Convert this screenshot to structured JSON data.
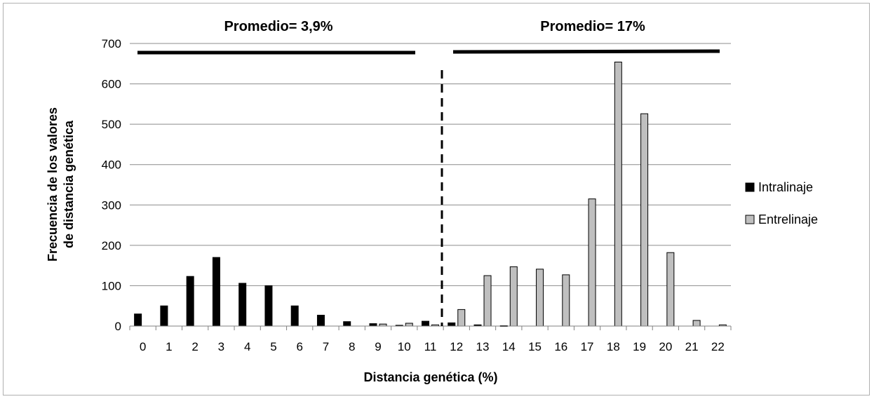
{
  "chart_data": {
    "type": "bar",
    "xlabel": "Distancia genética (%)",
    "ylabel_line1": "Frecuencia de los valores",
    "ylabel_line2": "de distancia genética",
    "ylim": [
      0,
      700
    ],
    "yticks": [
      "0",
      "100",
      "200",
      "300",
      "400",
      "500",
      "600",
      "700"
    ],
    "categories": [
      "0",
      "1",
      "2",
      "3",
      "4",
      "5",
      "6",
      "7",
      "8",
      "9",
      "10",
      "11",
      "12",
      "13",
      "14",
      "15",
      "16",
      "17",
      "18",
      "19",
      "20",
      "21",
      "22"
    ],
    "series": [
      {
        "name": "Intralinaje",
        "color": "#000000",
        "values": [
          30,
          50,
          123,
          170,
          106,
          100,
          50,
          27,
          11,
          6,
          2,
          12,
          8,
          3,
          1,
          0,
          0,
          0,
          0,
          0,
          0,
          0,
          0
        ]
      },
      {
        "name": "Entrelinaje",
        "color": "#bfbfbf",
        "values": [
          0,
          0,
          0,
          0,
          0,
          0,
          0,
          0,
          0,
          5,
          7,
          3,
          41,
          125,
          147,
          141,
          127,
          315,
          654,
          526,
          182,
          14,
          3
        ]
      }
    ],
    "annotations": {
      "left_mean": "Promedio= 3,9%",
      "right_mean": "Promedio= 17%"
    },
    "grid": true,
    "legend_position": "right"
  }
}
